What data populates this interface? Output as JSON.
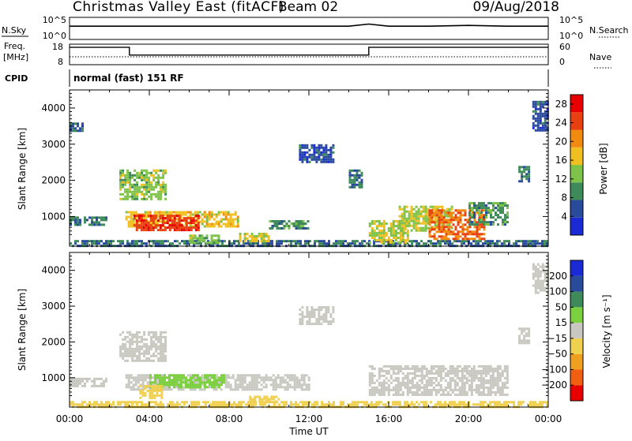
{
  "header": {
    "title": "Christmas Valley East (fitACF)",
    "beam": "Beam 02",
    "date": "09/Aug/2018"
  },
  "top_panels": {
    "nsky_label": "N.Sky",
    "nsky_ticks": [
      "10^5",
      "10^0"
    ],
    "nsearch_label": "N.Search",
    "nsearch_ticks": [
      "10^5",
      "10^0"
    ],
    "freq_label_1": "Freq.",
    "freq_label_2": "[MHz]",
    "freq_ticks": [
      "18",
      "8"
    ],
    "nave_label": "Nave",
    "nave_ticks": [
      "60",
      "0"
    ],
    "cpid_label": "CPID",
    "cpid_text": "normal (fast) 151 RF"
  },
  "colors": {
    "power_scale": [
      "#1a2bd6",
      "#2a4a9c",
      "#3f8a5a",
      "#7fc24a",
      "#f0c020",
      "#f08a10",
      "#e84010",
      "#e80000"
    ],
    "velocity_scale": [
      "#e80000",
      "#f06010",
      "#f0a020",
      "#f0d050",
      "#c8c8c0",
      "#7cd040",
      "#3f8a5a",
      "#2a4a9c",
      "#1a2bd6"
    ],
    "ground_scatter": "#c8c8c0"
  },
  "chart_data": [
    {
      "type": "line",
      "title": "",
      "xlabel": "",
      "ylabel": "N.Sky",
      "ylabel_right": "N.Search",
      "yscale": "log",
      "ylim": [
        1,
        100000
      ],
      "series": [
        {
          "name": "N.Sky",
          "x": [
            "00:00",
            "02:00",
            "04:00",
            "06:00",
            "08:00",
            "10:00",
            "12:00",
            "14:00",
            "15:00",
            "16:00",
            "18:00",
            "20:00",
            "22:00",
            "23:00",
            "24:00"
          ],
          "y": [
            1000,
            1000,
            1000,
            1000,
            1000,
            1000,
            1000,
            1000,
            3000,
            1000,
            1000,
            1500,
            1000,
            1000,
            1000
          ]
        }
      ]
    },
    {
      "type": "line",
      "title": "",
      "xlabel": "",
      "ylabel": "Freq. [MHz]",
      "ylabel_right": "Nave",
      "ylim": [
        8,
        18
      ],
      "ylim_right": [
        0,
        60
      ],
      "series": [
        {
          "name": "Freq.",
          "x": [
            "00:00",
            "03:00",
            "03:00",
            "15:00",
            "15:00",
            "23:00",
            "24:00"
          ],
          "y": [
            16.5,
            16.5,
            12.7,
            12.7,
            16.5,
            16.5,
            16.5
          ]
        },
        {
          "name": "Nave",
          "x": [
            "00:00",
            "24:00"
          ],
          "y": [
            24,
            24
          ]
        }
      ]
    },
    {
      "type": "heatmap",
      "title": "",
      "xlabel": "",
      "ylabel": "Slant Range [km]",
      "x_ticks": [
        "00:00",
        "04:00",
        "08:00",
        "12:00",
        "16:00",
        "20:00",
        "00:00"
      ],
      "y_ticks": [
        1000,
        2000,
        3000,
        4000
      ],
      "ylim": [
        180,
        4500
      ],
      "colorbar": {
        "label": "Power [dB]",
        "ticks": [
          4,
          8,
          12,
          16,
          20,
          24,
          28
        ],
        "range": [
          0,
          30
        ]
      },
      "regions": [
        {
          "t_start": 0.0,
          "t_end": 24.0,
          "r_min": 180,
          "r_max": 350,
          "value": 8
        },
        {
          "t_start": 0.0,
          "t_end": 1.8,
          "r_min": 800,
          "r_max": 1000,
          "value": 9
        },
        {
          "t_start": 0.0,
          "t_end": 0.7,
          "r_min": 3400,
          "r_max": 3600,
          "value": 6
        },
        {
          "t_start": 2.5,
          "t_end": 4.8,
          "r_min": 1500,
          "r_max": 2300,
          "value": 14
        },
        {
          "t_start": 2.8,
          "t_end": 8.5,
          "r_min": 700,
          "r_max": 1150,
          "value": 18
        },
        {
          "t_start": 3.2,
          "t_end": 6.5,
          "r_min": 600,
          "r_max": 1050,
          "value": 27
        },
        {
          "t_start": 6.0,
          "t_end": 7.5,
          "r_min": 300,
          "r_max": 500,
          "value": 14
        },
        {
          "t_start": 8.5,
          "t_end": 10.0,
          "r_min": 350,
          "r_max": 550,
          "value": 17
        },
        {
          "t_start": 10.0,
          "t_end": 12.0,
          "r_min": 700,
          "r_max": 900,
          "value": 10
        },
        {
          "t_start": 11.5,
          "t_end": 13.2,
          "r_min": 2500,
          "r_max": 3000,
          "value": 6
        },
        {
          "t_start": 14.0,
          "t_end": 14.6,
          "r_min": 1800,
          "r_max": 2300,
          "value": 8
        },
        {
          "t_start": 15.0,
          "t_end": 17.0,
          "r_min": 300,
          "r_max": 900,
          "value": 16
        },
        {
          "t_start": 16.5,
          "t_end": 19.2,
          "r_min": 600,
          "r_max": 1300,
          "value": 15
        },
        {
          "t_start": 18.0,
          "t_end": 20.8,
          "r_min": 400,
          "r_max": 1200,
          "value": 24
        },
        {
          "t_start": 20.0,
          "t_end": 22.0,
          "r_min": 800,
          "r_max": 1400,
          "value": 10
        },
        {
          "t_start": 22.5,
          "t_end": 23.0,
          "r_min": 2000,
          "r_max": 2400,
          "value": 9
        },
        {
          "t_start": 23.2,
          "t_end": 24.0,
          "r_min": 3400,
          "r_max": 4200,
          "value": 6
        }
      ]
    },
    {
      "type": "heatmap",
      "title": "",
      "xlabel": "Time UT",
      "ylabel": "Slant Range [km]",
      "x_ticks": [
        "00:00",
        "04:00",
        "08:00",
        "12:00",
        "16:00",
        "20:00",
        "00:00"
      ],
      "y_ticks": [
        1000,
        2000,
        3000,
        4000
      ],
      "ylim": [
        180,
        4500
      ],
      "colorbar": {
        "label": "Velocity [m s⁻¹]",
        "ticks": [
          "-200",
          "-100",
          "-50",
          "-15",
          "15",
          "50",
          "100",
          "200"
        ]
      },
      "regions": [
        {
          "t_start": 0.0,
          "t_end": 24.0,
          "r_min": 180,
          "r_max": 350,
          "value": -40
        },
        {
          "t_start": 0.0,
          "t_end": 1.8,
          "r_min": 750,
          "r_max": 1000,
          "value": 0
        },
        {
          "t_start": 2.5,
          "t_end": 4.8,
          "r_min": 1500,
          "r_max": 2300,
          "value": 0
        },
        {
          "t_start": 2.8,
          "t_end": 12.0,
          "r_min": 700,
          "r_max": 1100,
          "value": 0
        },
        {
          "t_start": 4.0,
          "t_end": 7.8,
          "r_min": 750,
          "r_max": 1100,
          "value": 40
        },
        {
          "t_start": 3.5,
          "t_end": 4.6,
          "r_min": 450,
          "r_max": 800,
          "value": -30
        },
        {
          "t_start": 9.0,
          "t_end": 10.5,
          "r_min": 350,
          "r_max": 500,
          "value": -30
        },
        {
          "t_start": 11.5,
          "t_end": 13.2,
          "r_min": 2500,
          "r_max": 3000,
          "value": 0
        },
        {
          "t_start": 15.0,
          "t_end": 22.0,
          "r_min": 500,
          "r_max": 1350,
          "value": 0
        },
        {
          "t_start": 22.5,
          "t_end": 23.0,
          "r_min": 2000,
          "r_max": 2400,
          "value": 0
        },
        {
          "t_start": 23.2,
          "t_end": 24.0,
          "r_min": 3400,
          "r_max": 4200,
          "value": 0
        }
      ]
    }
  ]
}
